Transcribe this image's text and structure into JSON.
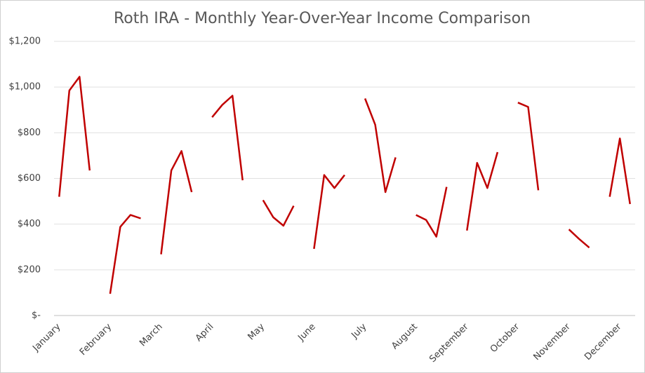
{
  "chart_data": {
    "type": "line",
    "title": "Roth IRA - Monthly Year-Over-Year Income Comparison",
    "categories": [
      "January",
      null,
      null,
      null,
      null,
      "February",
      null,
      null,
      null,
      null,
      "March",
      null,
      null,
      null,
      null,
      "April",
      null,
      null,
      null,
      null,
      "May",
      null,
      null,
      null,
      null,
      "June",
      null,
      null,
      null,
      null,
      "July",
      null,
      null,
      null,
      null,
      "August",
      null,
      null,
      null,
      null,
      "September",
      null,
      null,
      null,
      null,
      "October",
      null,
      null,
      null,
      null,
      "November",
      null,
      null,
      null,
      null,
      "December",
      null
    ],
    "values": [
      520,
      985,
      1045,
      635,
      null,
      95,
      388,
      440,
      425,
      null,
      268,
      635,
      720,
      540,
      null,
      868,
      922,
      962,
      592,
      null,
      505,
      430,
      393,
      480,
      null,
      292,
      615,
      558,
      615,
      null,
      950,
      835,
      540,
      692,
      null,
      440,
      418,
      345,
      563,
      null,
      372,
      668,
      558,
      715,
      null,
      932,
      913,
      548,
      null,
      null,
      377,
      335,
      297,
      null,
      520,
      775,
      488
    ],
    "color": "#c00000",
    "ylim": [
      0,
      1200
    ],
    "yticks": [
      {
        "value": 0,
        "label": "$-"
      },
      {
        "value": 200,
        "label": "$200"
      },
      {
        "value": 400,
        "label": "$400"
      },
      {
        "value": 600,
        "label": "$600"
      },
      {
        "value": 800,
        "label": "$800"
      },
      {
        "value": 1000,
        "label": "$1,000"
      },
      {
        "value": 1200,
        "label": "$1,200"
      }
    ],
    "grid": true
  }
}
